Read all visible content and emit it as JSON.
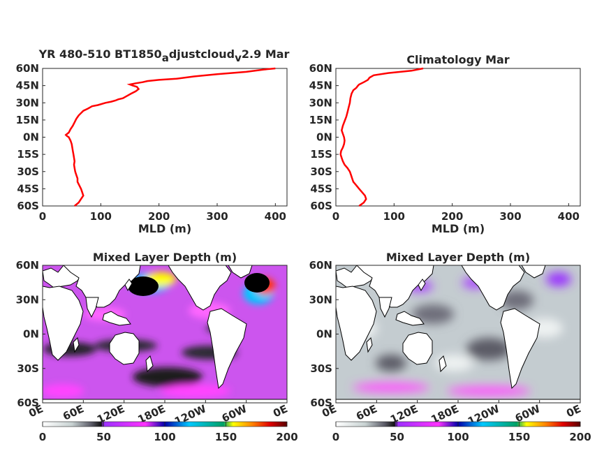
{
  "chart_data": [
    {
      "type": "line",
      "title_main": "YR 480-510 BT1850",
      "title_sub1": "a",
      "title_mid": "djustcloud",
      "title_sub2": "v",
      "title_end": "2.9 Mar",
      "xlabel": "MLD (m)",
      "xlim": [
        0,
        420
      ],
      "ylim": [
        -60,
        60
      ],
      "xticks": [
        0,
        100,
        200,
        300,
        400
      ],
      "xtick_labels": [
        "0",
        "100",
        "200",
        "300",
        "400"
      ],
      "yticks": [
        60,
        45,
        30,
        15,
        0,
        -15,
        -30,
        -45,
        -60
      ],
      "ytick_labels": [
        "60N",
        "45N",
        "30N",
        "15N",
        "0N",
        "15S",
        "30S",
        "45S",
        "60S"
      ],
      "line_color": "#ff0000",
      "series": [
        {
          "x": [
            55,
            62,
            66,
            70,
            68,
            66,
            63,
            60,
            60,
            58,
            56,
            55,
            54,
            55,
            54,
            53,
            52,
            51,
            50,
            48,
            45,
            42,
            40,
            45,
            48,
            52,
            55,
            58,
            62,
            66,
            70,
            78,
            85,
            95,
            108,
            118,
            125,
            130,
            138,
            145,
            152,
            160,
            165,
            162,
            155,
            150,
            160,
            172,
            180,
            200,
            230,
            260,
            300,
            350,
            380,
            400
          ],
          "y": [
            -60,
            -57,
            -54,
            -51,
            -48,
            -45,
            -42,
            -39,
            -36,
            -33,
            -30,
            -27,
            -24,
            -21,
            -18,
            -15,
            -12,
            -9,
            -6,
            -3,
            0,
            1,
            2,
            4,
            7,
            10,
            13,
            16,
            19,
            21,
            23,
            25,
            27,
            28,
            30,
            31,
            32,
            33,
            34,
            36,
            38,
            40,
            42,
            44,
            45,
            46,
            47,
            48,
            49,
            50,
            51,
            53,
            55,
            57,
            59,
            60
          ]
        }
      ]
    },
    {
      "type": "line",
      "title": "Climatology Mar",
      "xlabel": "MLD (m)",
      "xlim": [
        0,
        420
      ],
      "ylim": [
        -60,
        60
      ],
      "xticks": [
        0,
        100,
        200,
        300,
        400
      ],
      "xtick_labels": [
        "0",
        "100",
        "200",
        "300",
        "400"
      ],
      "yticks": [
        60,
        45,
        30,
        15,
        0,
        -15,
        -30,
        -45,
        -60
      ],
      "ytick_labels": [
        "60N",
        "45N",
        "30N",
        "15N",
        "0N",
        "15S",
        "30S",
        "45S",
        "60S"
      ],
      "line_color": "#ff0000",
      "series": [
        {
          "x": [
            40,
            48,
            52,
            50,
            45,
            40,
            35,
            30,
            28,
            26,
            24,
            20,
            15,
            12,
            10,
            8,
            9,
            12,
            14,
            15,
            14,
            12,
            10,
            12,
            15,
            18,
            20,
            22,
            24,
            25,
            27,
            30,
            35,
            38,
            40,
            48,
            55,
            58,
            65,
            90,
            130,
            150
          ],
          "y": [
            -60,
            -57,
            -54,
            -51,
            -48,
            -45,
            -42,
            -39,
            -36,
            -33,
            -30,
            -27,
            -24,
            -21,
            -18,
            -15,
            -12,
            -9,
            -6,
            -3,
            0,
            3,
            6,
            10,
            14,
            18,
            22,
            26,
            30,
            34,
            38,
            41,
            43,
            45,
            46,
            48,
            50,
            52,
            54,
            56,
            58,
            60
          ]
        }
      ]
    },
    {
      "type": "heatmap",
      "title": "Mixed Layer Depth (m)",
      "xtick_labels": [
        "0E",
        "60E",
        "120E",
        "180E",
        "120W",
        "60W",
        "0E"
      ],
      "ytick_labels": [
        "60N",
        "30N",
        "0N",
        "30S",
        "60S"
      ],
      "zlim": [
        0,
        200
      ]
    },
    {
      "type": "heatmap",
      "title": "Mixed Layer Depth (m)",
      "xtick_labels": [
        "0E",
        "60E",
        "120E",
        "180E",
        "120W",
        "60W",
        "0E"
      ],
      "ytick_labels": [
        "60N",
        "30N",
        "0N",
        "30S",
        "60S"
      ],
      "zlim": [
        0,
        200
      ]
    }
  ],
  "colorbar": {
    "ticks": [
      0,
      50,
      100,
      150,
      200
    ],
    "tick_labels": [
      "0",
      "50",
      "100",
      "150",
      "200"
    ],
    "colors": [
      "#ffffff",
      "#c8d2d2",
      "#5a5a66",
      "#111111",
      "#9b30ff",
      "#ff33ff",
      "#0000aa",
      "#00c8ff",
      "#00a064",
      "#ffff00",
      "#ff8000",
      "#e00000",
      "#5a0000"
    ]
  }
}
